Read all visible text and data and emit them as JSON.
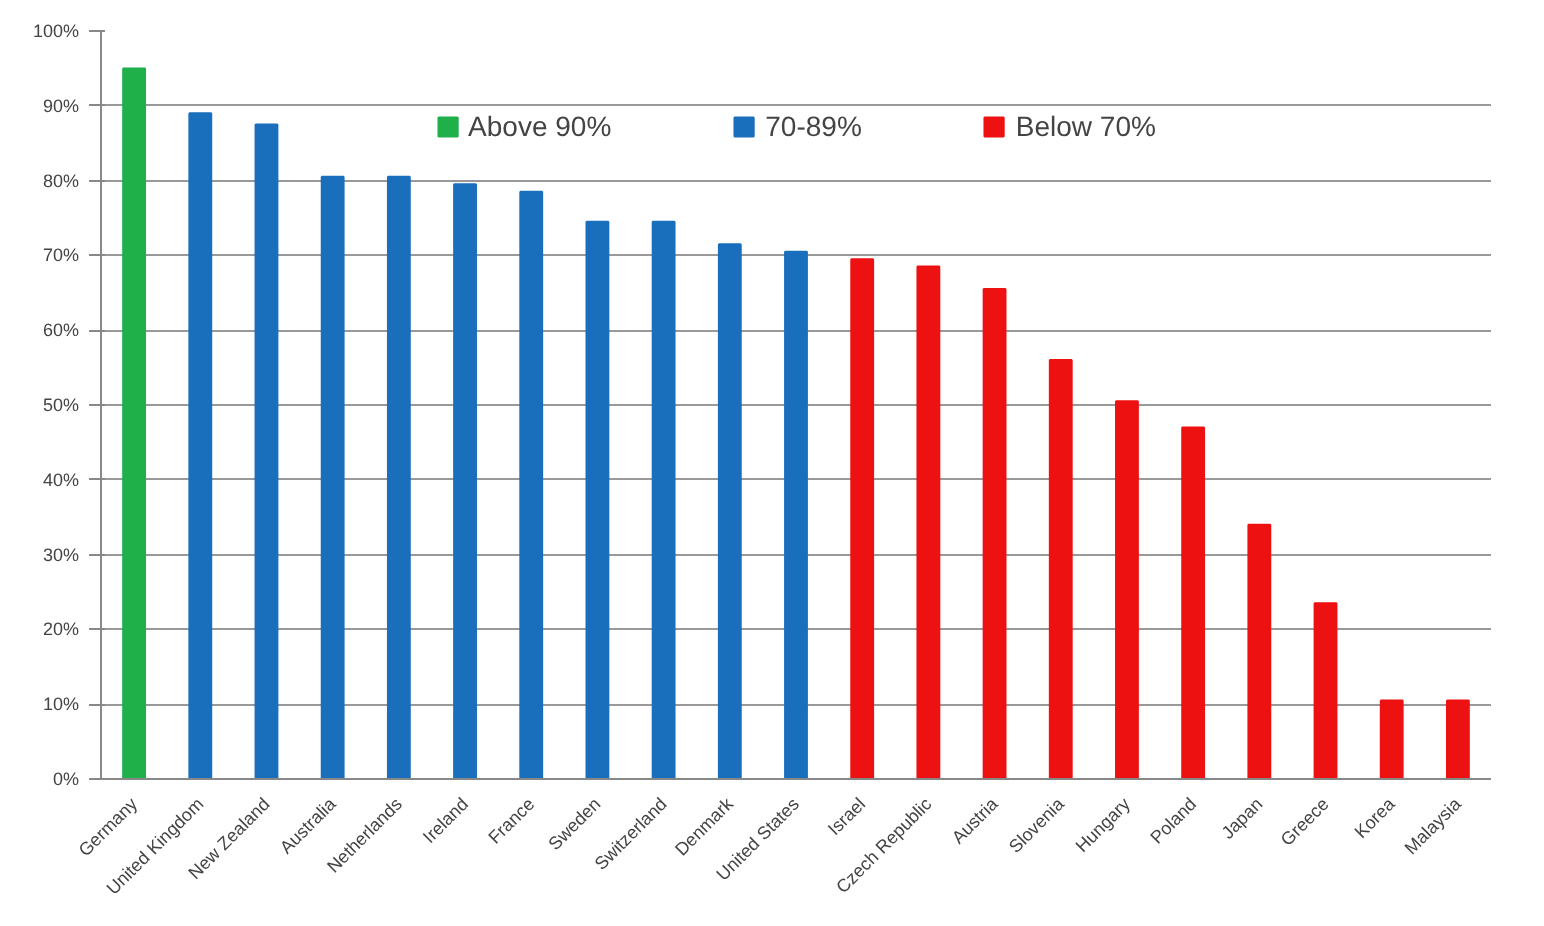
{
  "chart_data": {
    "type": "bar",
    "categories": [
      "Germany",
      "United Kingdom",
      "New Zealand",
      "Australia",
      "Netherlands",
      "Ireland",
      "France",
      "Sweden",
      "Switzerland",
      "Denmark",
      "United States",
      "Israel",
      "Czech Republic",
      "Austria",
      "Slovenia",
      "Hungary",
      "Poland",
      "Japan",
      "Greece",
      "Korea",
      "Malaysia"
    ],
    "series": [
      {
        "name": "Above 90%",
        "color": "#1fb04a",
        "values": [
          95,
          null,
          null,
          null,
          null,
          null,
          null,
          null,
          null,
          null,
          null,
          null,
          null,
          null,
          null,
          null,
          null,
          null,
          null,
          null,
          null
        ]
      },
      {
        "name": "70-89%",
        "color": "#1a6fbd",
        "values": [
          null,
          89,
          87.5,
          80.5,
          80.5,
          79.5,
          78.5,
          74.5,
          74.5,
          71.5,
          70.5,
          null,
          null,
          null,
          null,
          null,
          null,
          null,
          null,
          null,
          null
        ]
      },
      {
        "name": "Below 70%",
        "color": "#ee1111",
        "values": [
          null,
          null,
          null,
          null,
          null,
          null,
          null,
          null,
          null,
          null,
          null,
          69.5,
          68.5,
          65.5,
          56,
          50.5,
          47,
          34,
          23.5,
          10.5,
          10.5
        ]
      }
    ],
    "ylim": [
      0,
      100
    ],
    "yticks": [
      {
        "value": 0,
        "label": "0%"
      },
      {
        "value": 10,
        "label": "10%"
      },
      {
        "value": 20,
        "label": "20%"
      },
      {
        "value": 30,
        "label": "30%"
      },
      {
        "value": 40,
        "label": "40%"
      },
      {
        "value": 50,
        "label": "50%"
      },
      {
        "value": 60,
        "label": "60%"
      },
      {
        "value": 70,
        "label": "70%"
      },
      {
        "value": 80,
        "label": "80%"
      },
      {
        "value": 90,
        "label": "90%"
      },
      {
        "value": 100,
        "label": "100%"
      }
    ],
    "grid": "y",
    "legend": "top"
  }
}
